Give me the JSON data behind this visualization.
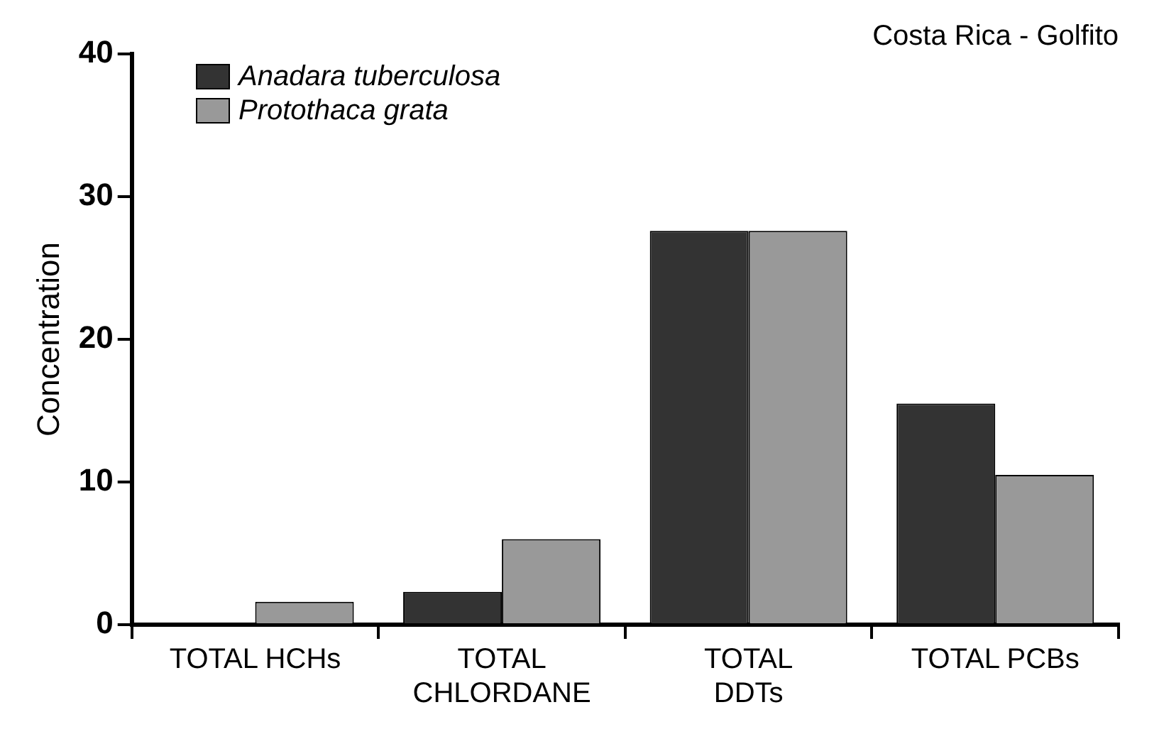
{
  "chart_data": {
    "type": "bar",
    "title": "Costa Rica - Golfito",
    "ylabel": "Concentration",
    "categories": [
      "TOTAL HCHs",
      "TOTAL\nCHLORDANE",
      "TOTAL\nDDTs",
      "TOTAL PCBs"
    ],
    "series": [
      {
        "name": "Anadara tuberculosa",
        "color": "#333333",
        "values": [
          0,
          2.3,
          27.6,
          15.5
        ]
      },
      {
        "name": "Protothaca grata",
        "color": "#999999",
        "values": [
          1.6,
          6.0,
          27.6,
          10.5
        ]
      }
    ],
    "ylim": [
      0,
      40
    ],
    "yticks": [
      0,
      10,
      20,
      30,
      40
    ],
    "grid": false,
    "legend": "top left"
  }
}
